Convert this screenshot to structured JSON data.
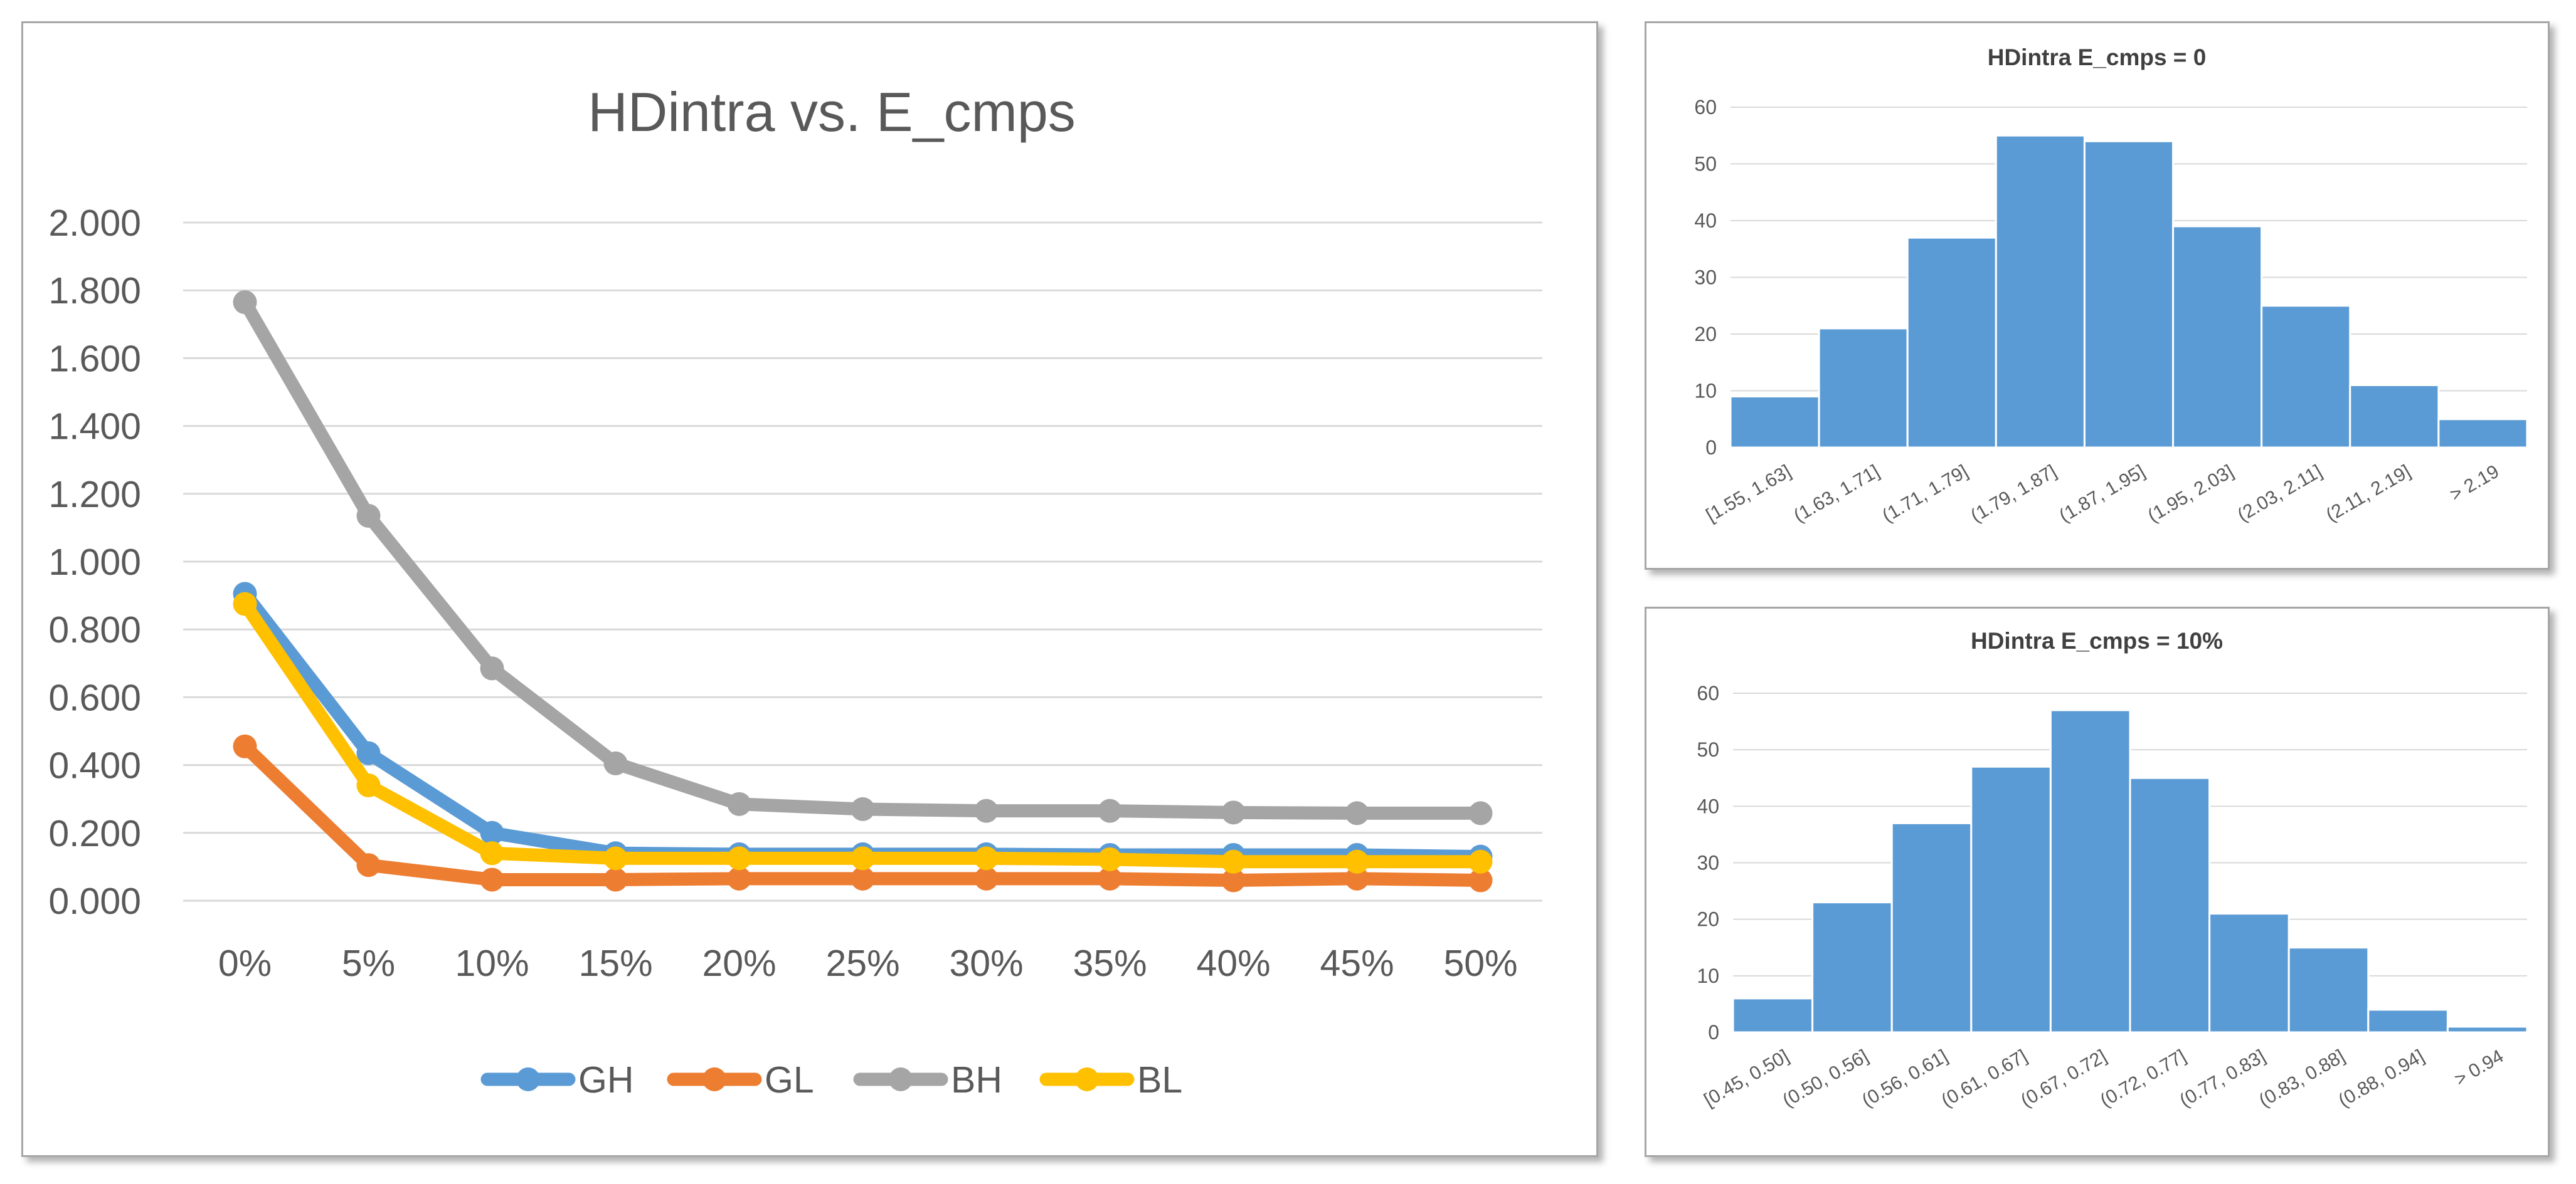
{
  "chart_data": [
    {
      "type": "line",
      "title": "HDintra vs. E_cmps",
      "xlabel": "",
      "ylabel": "",
      "categories": [
        "0%",
        "5%",
        "10%",
        "15%",
        "20%",
        "25%",
        "30%",
        "35%",
        "40%",
        "45%",
        "50%"
      ],
      "ylim": [
        0,
        2
      ],
      "yticks": [
        "0.000",
        "0.200",
        "0.400",
        "0.600",
        "0.800",
        "1.000",
        "1.200",
        "1.400",
        "1.600",
        "1.800",
        "2.000"
      ],
      "grid": true,
      "legend_position": "bottom",
      "series": [
        {
          "name": "GH",
          "color": "#5b9bd5",
          "values": [
            0.905,
            0.435,
            0.2,
            0.14,
            0.137,
            0.137,
            0.137,
            0.135,
            0.135,
            0.135,
            0.13
          ]
        },
        {
          "name": "GL",
          "color": "#ed7d31",
          "values": [
            0.455,
            0.105,
            0.062,
            0.062,
            0.065,
            0.065,
            0.065,
            0.065,
            0.06,
            0.065,
            0.06
          ]
        },
        {
          "name": "BH",
          "color": "#a5a5a5",
          "values": [
            1.765,
            1.135,
            0.685,
            0.405,
            0.285,
            0.27,
            0.265,
            0.265,
            0.26,
            0.258,
            0.258
          ]
        },
        {
          "name": "BL",
          "color": "#ffc000",
          "values": [
            0.875,
            0.34,
            0.14,
            0.125,
            0.125,
            0.125,
            0.125,
            0.122,
            0.115,
            0.115,
            0.115
          ]
        }
      ]
    },
    {
      "type": "bar",
      "title": "HDintra E_cmps = 0",
      "categories": [
        "[1.55, 1.63]",
        "(1.63, 1.71]",
        "(1.71, 1.79]",
        "(1.79, 1.87]",
        "(1.87, 1.95]",
        "(1.95, 2.03]",
        "(2.03, 2.11]",
        "(2.11, 2.19]",
        "> 2.19"
      ],
      "values": [
        9,
        21,
        37,
        55,
        54,
        39,
        25,
        11,
        5
      ],
      "ylim": [
        0,
        60
      ],
      "yticks": [
        "0",
        "10",
        "20",
        "30",
        "40",
        "50",
        "60"
      ],
      "grid": true,
      "bar_color": "#5b9bd5"
    },
    {
      "type": "bar",
      "title": "HDintra E_cmps = 10%",
      "categories": [
        "[0.45, 0.50]",
        "(0.50, 0.56]",
        "(0.56, 0.61]",
        "(0.61, 0.67]",
        "(0.67, 0.72]",
        "(0.72, 0.77]",
        "(0.77, 0.83]",
        "(0.83, 0.88]",
        "(0.88, 0.94]",
        "> 0.94"
      ],
      "values": [
        6,
        23,
        37,
        47,
        57,
        45,
        21,
        15,
        4,
        1
      ],
      "ylim": [
        0,
        60
      ],
      "yticks": [
        "0",
        "10",
        "20",
        "30",
        "40",
        "50",
        "60"
      ],
      "grid": true,
      "bar_color": "#5b9bd5"
    }
  ]
}
